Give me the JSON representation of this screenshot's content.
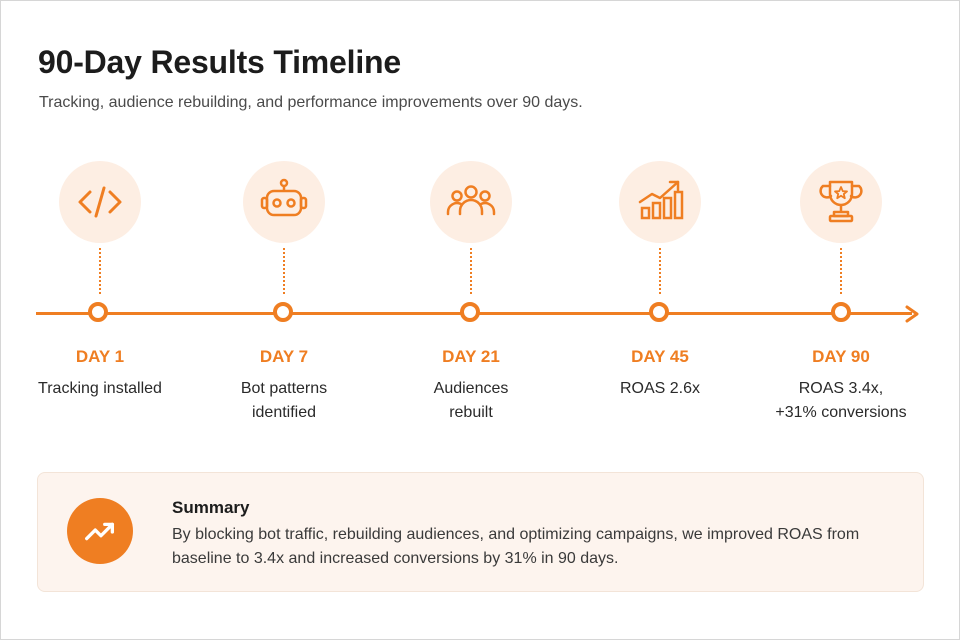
{
  "title": "90-Day Results Timeline",
  "subtitle": "Tracking, audience rebuilding, and performance improvements over 90 days.",
  "accent_color": "#ef7e22",
  "steps": [
    {
      "day": "DAY 1",
      "label": "Tracking installed",
      "icon": "code-icon"
    },
    {
      "day": "DAY 7",
      "label": "Bot patterns\nidentified",
      "icon": "robot-icon"
    },
    {
      "day": "DAY 21",
      "label": "Audiences\nrebuilt",
      "icon": "audience-icon"
    },
    {
      "day": "DAY 45",
      "label": "ROAS 2.6x",
      "icon": "growth-chart-icon"
    },
    {
      "day": "DAY 90",
      "label": "ROAS 3.4x,\n+31% conversions",
      "icon": "trophy-icon"
    }
  ],
  "summary": {
    "heading": "Summary",
    "body": "By blocking bot traffic, rebuilding audiences, and optimizing campaigns, we improved ROAS from baseline to 3.4x and increased conversions by 31% in 90 days.",
    "icon": "trend-up-icon"
  }
}
